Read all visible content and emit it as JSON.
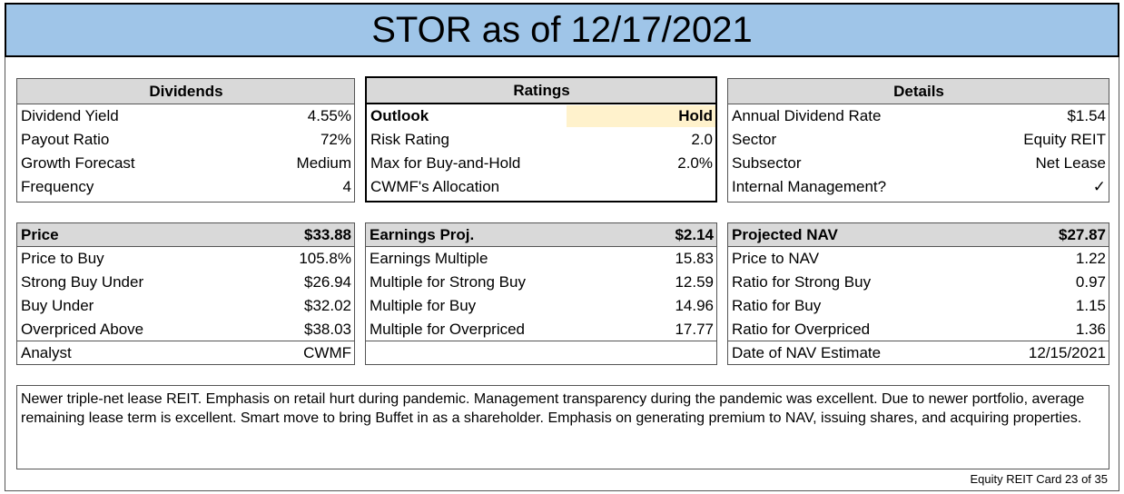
{
  "title": "STOR as of 12/17/2021",
  "dividends": {
    "header": "Dividends",
    "rows": [
      {
        "label": "Dividend Yield",
        "value": "4.55%"
      },
      {
        "label": "Payout Ratio",
        "value": "72%"
      },
      {
        "label": "Growth Forecast",
        "value": "Medium"
      },
      {
        "label": "Frequency",
        "value": "4"
      }
    ]
  },
  "ratings": {
    "header": "Ratings",
    "outlook_label": "Outlook",
    "outlook_value": "Hold",
    "rows": [
      {
        "label": "Risk Rating",
        "value": "2.0"
      },
      {
        "label": "Max for Buy-and-Hold",
        "value": "2.0%"
      },
      {
        "label": "CWMF's Allocation",
        "value": ""
      }
    ]
  },
  "details": {
    "header": "Details",
    "rows": [
      {
        "label": "Annual Dividend Rate",
        "value": "$1.54"
      },
      {
        "label": "Sector",
        "value": "Equity REIT"
      },
      {
        "label": "Subsector",
        "value": "Net Lease"
      },
      {
        "label": "Internal Management?",
        "value": "✓"
      }
    ]
  },
  "price": {
    "header_label": "Price",
    "header_value": "$33.88",
    "rows": [
      {
        "label": "Price to Buy",
        "value": "105.8%"
      },
      {
        "label": "Strong Buy Under",
        "value": "$26.94"
      },
      {
        "label": "Buy Under",
        "value": "$32.02"
      },
      {
        "label": "Overpriced Above",
        "value": "$38.03"
      }
    ],
    "analyst_label": "Analyst",
    "analyst_value": "CWMF"
  },
  "earnings": {
    "header_label": "Earnings Proj.",
    "header_value": "$2.14",
    "rows": [
      {
        "label": "Earnings Multiple",
        "value": "15.83"
      },
      {
        "label": "Multiple for Strong Buy",
        "value": "12.59"
      },
      {
        "label": "Multiple for Buy",
        "value": "14.96"
      },
      {
        "label": "Multiple for Overpriced",
        "value": "17.77"
      }
    ]
  },
  "nav": {
    "header_label": "Projected NAV",
    "header_value": "$27.87",
    "rows": [
      {
        "label": "Price to NAV",
        "value": "1.22"
      },
      {
        "label": "Ratio for Strong Buy",
        "value": "0.97"
      },
      {
        "label": "Ratio for Buy",
        "value": "1.15"
      },
      {
        "label": "Ratio for Overpriced",
        "value": "1.36"
      }
    ],
    "date_label": "Date of NAV Estimate",
    "date_value": "12/15/2021"
  },
  "notes": "Newer triple-net lease REIT. Emphasis on retail hurt during pandemic. Management transparency during the pandemic was excellent. Due to newer portfolio, average remaining lease term is excellent. Smart move to bring Buffet in as a shareholder. Emphasis on generating premium to NAV, issuing shares, and acquiring properties.",
  "footer": "Equity REIT Card 23 of 35"
}
